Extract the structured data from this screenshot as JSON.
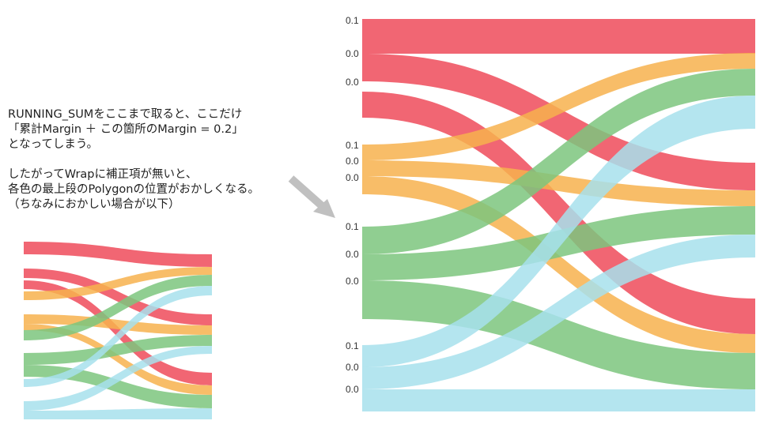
{
  "annotation": {
    "lines": [
      "RUNNING_SUMをここまで取ると、ここだけ",
      "「累計Margin ＋ この箇所のMargin = 0.2」",
      "となってしまう。",
      "",
      "したがってWrapに補正項が無いと、",
      "各色の最上段のPolygonの位置がおかしくなる。",
      "（ちなみにおかしい場合が以下）"
    ]
  },
  "colors": {
    "red": "#ee4b5a",
    "orange": "#f7b14e",
    "green": "#7cc57e",
    "blue": "#a7e0ec",
    "arrow": "#c0c0c0"
  },
  "large_diagram": {
    "axis_labels": [
      "0.1",
      "0.0",
      "0.0",
      "0.1",
      "0.0",
      "0.0",
      "0.1",
      "0.0",
      "0.0",
      "0.1",
      "0.0",
      "0.0"
    ]
  }
}
